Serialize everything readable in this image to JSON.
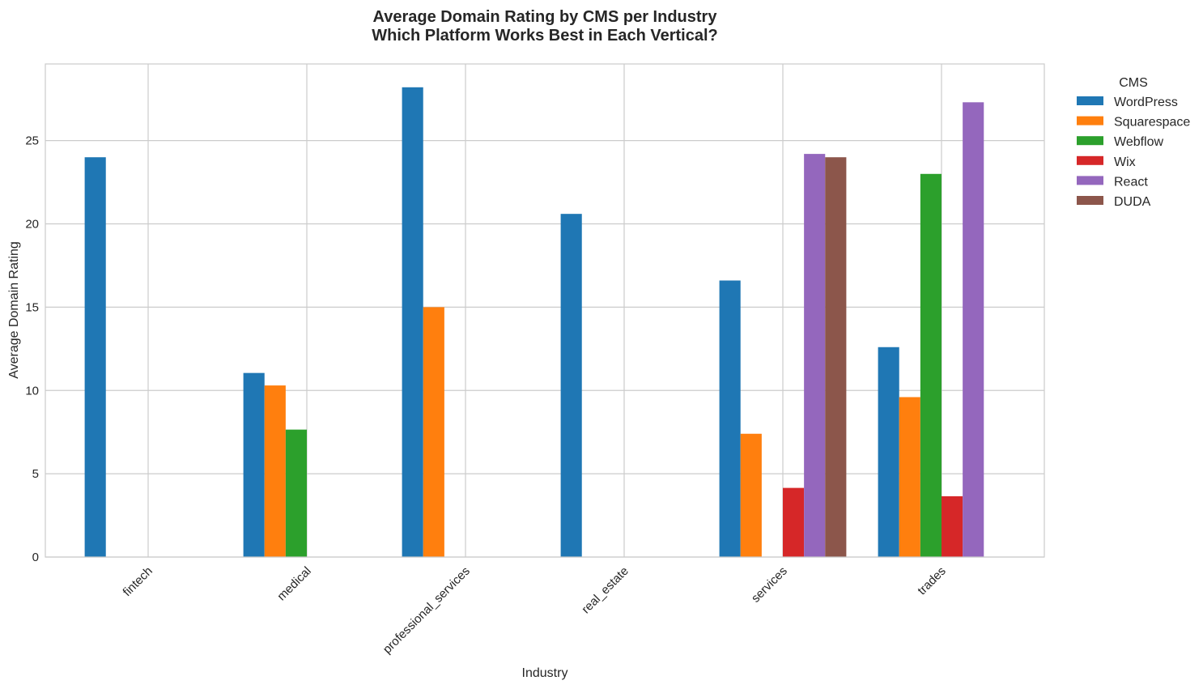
{
  "chart_data": {
    "type": "bar",
    "title": "Average Domain Rating by CMS per Industry",
    "subtitle": "Which Platform Works Best in Each Vertical?",
    "xlabel": "Industry",
    "ylabel": "Average Domain Rating",
    "categories": [
      "fintech",
      "medical",
      "professional_services",
      "real_estate",
      "services",
      "trades"
    ],
    "ylim": [
      0,
      29.6
    ],
    "yticks": [
      "0",
      "5",
      "10",
      "15",
      "20",
      "25"
    ],
    "grid": true,
    "legend": {
      "title": "CMS",
      "placement": "outside-top-right"
    },
    "series": [
      {
        "name": "WordPress",
        "color": "#1f77b4",
        "values": [
          24.0,
          11.05,
          28.2,
          20.6,
          16.6,
          12.6
        ]
      },
      {
        "name": "Squarespace",
        "color": "#ff7f0e",
        "values": [
          null,
          10.3,
          15.0,
          null,
          7.4,
          9.6
        ]
      },
      {
        "name": "Webflow",
        "color": "#2ca02c",
        "values": [
          null,
          7.65,
          null,
          null,
          null,
          23.0
        ]
      },
      {
        "name": "Wix",
        "color": "#d62728",
        "values": [
          null,
          null,
          null,
          null,
          4.15,
          3.65
        ]
      },
      {
        "name": "React",
        "color": "#9467bd",
        "values": [
          null,
          null,
          null,
          null,
          24.2,
          27.3
        ]
      },
      {
        "name": "DUDA",
        "color": "#8c564b",
        "values": [
          null,
          null,
          null,
          null,
          24.0,
          null
        ]
      }
    ]
  }
}
